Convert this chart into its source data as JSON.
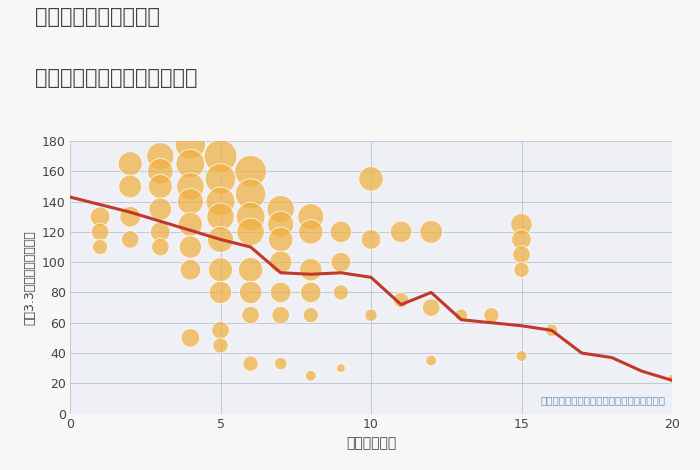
{
  "title_line1": "奈良県大和西大寺駅の",
  "title_line2": "駅距離別中古マンション価格",
  "xlabel": "駅距離（分）",
  "ylabel": "坪（3.3㎡）単価（万円）",
  "annotation": "円の大きさは、取引のあった物件面積を示す",
  "xlim": [
    0,
    20
  ],
  "ylim": [
    0,
    180
  ],
  "yticks": [
    0,
    20,
    40,
    60,
    80,
    100,
    120,
    140,
    160,
    180
  ],
  "xticks": [
    0,
    5,
    10,
    15,
    20
  ],
  "bg_color": "#f7f7f5",
  "plot_bg": "#eef0f5",
  "bubble_color": "#f0b040",
  "bubble_edge": "#ffffff",
  "line_color": "#c0392b",
  "trend_x": [
    0,
    1,
    2,
    3,
    4,
    5,
    6,
    7,
    8,
    9,
    10,
    11,
    12,
    13,
    14,
    15,
    16,
    17,
    18,
    19,
    20
  ],
  "trend_y": [
    143,
    138,
    133,
    127,
    121,
    115,
    110,
    93,
    92,
    93,
    90,
    72,
    80,
    62,
    60,
    58,
    55,
    40,
    37,
    28,
    22
  ],
  "scatter_x": [
    1,
    1,
    1,
    2,
    2,
    2,
    2,
    3,
    3,
    3,
    3,
    3,
    3,
    4,
    4,
    4,
    4,
    4,
    4,
    4,
    4,
    5,
    5,
    5,
    5,
    5,
    5,
    5,
    5,
    5,
    6,
    6,
    6,
    6,
    6,
    6,
    6,
    6,
    7,
    7,
    7,
    7,
    7,
    7,
    7,
    8,
    8,
    8,
    8,
    8,
    8,
    9,
    9,
    9,
    9,
    10,
    10,
    10,
    11,
    11,
    12,
    12,
    12,
    13,
    14,
    15,
    15,
    15,
    15,
    15,
    16,
    20
  ],
  "scatter_y": [
    130,
    120,
    110,
    165,
    150,
    130,
    115,
    170,
    160,
    150,
    135,
    120,
    110,
    178,
    165,
    150,
    140,
    125,
    110,
    95,
    50,
    170,
    155,
    140,
    130,
    115,
    95,
    80,
    55,
    45,
    160,
    145,
    130,
    120,
    95,
    80,
    65,
    33,
    135,
    125,
    115,
    100,
    80,
    65,
    33,
    130,
    120,
    95,
    80,
    65,
    25,
    120,
    100,
    80,
    30,
    155,
    115,
    65,
    120,
    75,
    120,
    70,
    35,
    65,
    65,
    125,
    115,
    105,
    95,
    38,
    55,
    23
  ],
  "scatter_size": [
    200,
    160,
    120,
    300,
    270,
    220,
    160,
    380,
    340,
    300,
    260,
    200,
    160,
    480,
    430,
    390,
    350,
    300,
    260,
    220,
    180,
    560,
    480,
    430,
    390,
    350,
    300,
    260,
    160,
    120,
    520,
    480,
    430,
    390,
    310,
    260,
    160,
    120,
    390,
    350,
    310,
    260,
    220,
    160,
    80,
    350,
    310,
    260,
    220,
    120,
    60,
    240,
    200,
    120,
    40,
    310,
    200,
    80,
    240,
    120,
    270,
    160,
    60,
    80,
    120,
    240,
    200,
    160,
    120,
    60,
    80,
    40
  ]
}
